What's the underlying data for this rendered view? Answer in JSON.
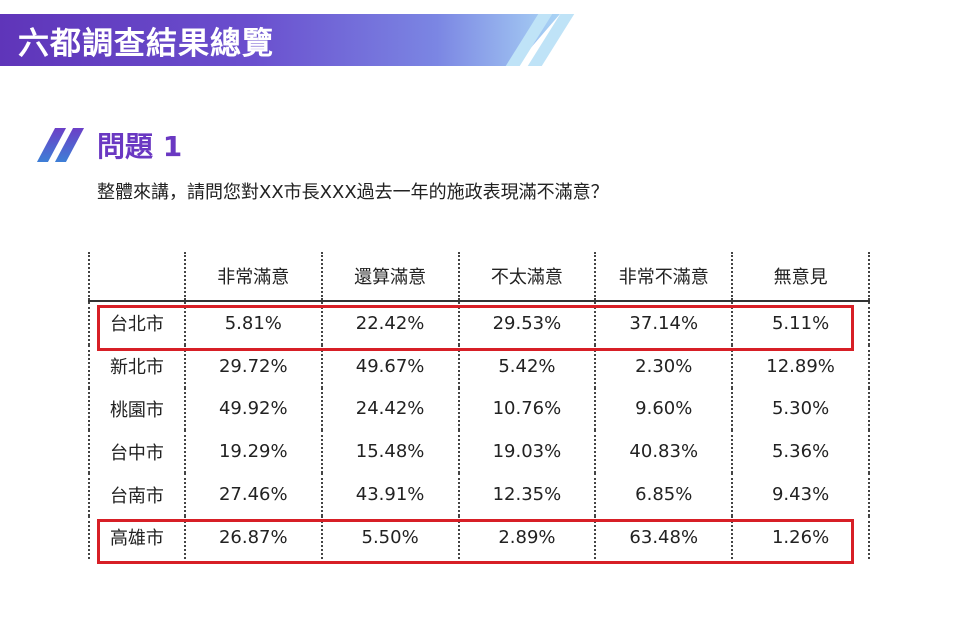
{
  "header": {
    "title": "六都調查結果總覽"
  },
  "question": {
    "label": "問題 1",
    "text": "整體來講，請問您對XX市長XXX過去一年的施政表現滿不滿意？"
  },
  "table": {
    "columns": [
      "",
      "非常滿意",
      "還算滿意",
      "不太滿意",
      "非常不滿意",
      "無意見"
    ],
    "rows": [
      [
        "台北市",
        "5.81%",
        "22.42%",
        "29.53%",
        "37.14%",
        "5.11%"
      ],
      [
        "新北市",
        "29.72%",
        "49.67%",
        "5.42%",
        "2.30%",
        "12.89%"
      ],
      [
        "桃園市",
        "49.92%",
        "24.42%",
        "10.76%",
        "9.60%",
        "5.30%"
      ],
      [
        "台中市",
        "19.29%",
        "15.48%",
        "19.03%",
        "40.83%",
        "5.36%"
      ],
      [
        "台南市",
        "27.46%",
        "43.91%",
        "12.35%",
        "6.85%",
        "9.43%"
      ],
      [
        "高雄市",
        "26.87%",
        "5.50%",
        "2.89%",
        "63.48%",
        "1.26%"
      ]
    ],
    "highlighted_rows": [
      "台北市",
      "高雄市"
    ]
  },
  "colors": {
    "accent": "#6a38c2",
    "highlight": "#d71f26"
  }
}
